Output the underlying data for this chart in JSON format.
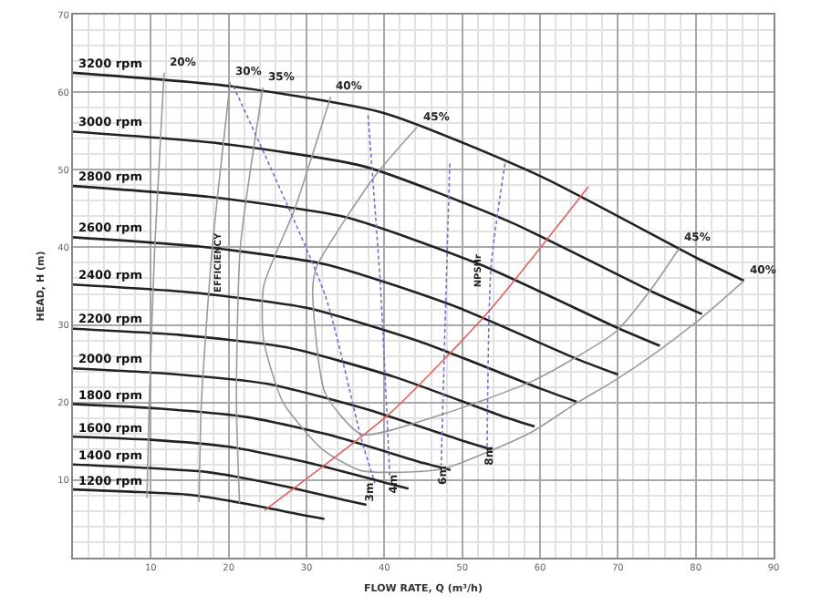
{
  "chart_data": {
    "type": "line",
    "xlabel": "FLOW RATE, Q (m³/h)",
    "ylabel": "HEAD, H (m)",
    "xlim": [
      0,
      90
    ],
    "ylim": [
      0,
      70
    ],
    "xticks": [
      10,
      20,
      30,
      40,
      50,
      60,
      70,
      80,
      90
    ],
    "yticks": [
      10,
      20,
      30,
      40,
      50,
      60,
      70
    ],
    "grid": true,
    "legend": false,
    "series": [
      {
        "name": "3200 rpm",
        "color": "#222222",
        "x": [
          0,
          20,
          40,
          60,
          80,
          86.2
        ],
        "values": [
          62.5,
          60.8,
          57.3,
          49.2,
          38.7,
          35.7
        ]
      },
      {
        "name": "3000 rpm",
        "color": "#222222",
        "x": [
          0,
          18.8,
          37.5,
          56.3,
          75,
          80.8
        ],
        "values": [
          54.9,
          53.4,
          50.4,
          43.2,
          34.0,
          31.4
        ]
      },
      {
        "name": "2800 rpm",
        "color": "#222222",
        "x": [
          0,
          17.5,
          35,
          52.5,
          70,
          75.4
        ],
        "values": [
          47.9,
          46.5,
          43.9,
          37.7,
          29.6,
          27.3
        ]
      },
      {
        "name": "2600 rpm",
        "color": "#222222",
        "x": [
          0,
          16.3,
          32.5,
          48.8,
          65,
          70
        ],
        "values": [
          41.3,
          40.1,
          37.8,
          32.5,
          25.5,
          23.6
        ]
      },
      {
        "name": "2400 rpm",
        "color": "#222222",
        "x": [
          0,
          15,
          30,
          45,
          60,
          64.7
        ],
        "values": [
          35.2,
          34.2,
          32.2,
          27.7,
          21.8,
          20.1
        ]
      },
      {
        "name": "2200 rpm",
        "color": "#222222",
        "x": [
          0,
          13.8,
          27.5,
          41.3,
          55,
          59.3
        ],
        "values": [
          29.5,
          28.7,
          27.1,
          23.3,
          18.3,
          16.9
        ]
      },
      {
        "name": "2000 rpm",
        "color": "#222222",
        "x": [
          0,
          12.5,
          25,
          37.5,
          50,
          53.9
        ],
        "values": [
          24.4,
          23.7,
          22.4,
          19.2,
          15.1,
          13.9
        ]
      },
      {
        "name": "1800 rpm",
        "color": "#222222",
        "x": [
          0,
          11.3,
          22.5,
          33.8,
          45,
          48.5
        ],
        "values": [
          19.8,
          19.2,
          18.1,
          15.6,
          12.2,
          11.3
        ]
      },
      {
        "name": "1600 rpm",
        "color": "#222222",
        "x": [
          0,
          10,
          20,
          30,
          40,
          43.1
        ],
        "values": [
          15.6,
          15.2,
          14.3,
          12.3,
          9.7,
          8.9
        ]
      },
      {
        "name": "1400 rpm",
        "color": "#222222",
        "x": [
          0,
          8.8,
          17.5,
          26.3,
          35,
          37.7
        ],
        "values": [
          12.0,
          11.6,
          11.0,
          9.4,
          7.4,
          6.8
        ]
      },
      {
        "name": "1200 rpm",
        "color": "#222222",
        "x": [
          0,
          7.5,
          15,
          22.5,
          30,
          32.3
        ],
        "values": [
          8.8,
          8.5,
          8.1,
          6.9,
          5.4,
          5.0
        ]
      },
      {
        "color": "#9a9a9a",
        "x": [
          11.7,
          10.5,
          9.8,
          9.5
        ],
        "values": [
          62.5,
          40,
          20,
          7.7
        ]
      },
      {
        "color": "#9a9a9a",
        "x": [
          20.2,
          17.9,
          16.5,
          16.2
        ],
        "values": [
          61.3,
          40,
          20,
          7.2
        ]
      },
      {
        "color": "#9a9a9a",
        "x": [
          24.4,
          21.5,
          21,
          21.4
        ],
        "values": [
          60.6,
          40,
          20,
          7
        ]
      },
      {
        "color": "#9a9a9a",
        "x": [
          33.1,
          28.5,
          24.5,
          24.5,
          27,
          32,
          37.1,
          47.3,
          53.7,
          59.1,
          64.5,
          70,
          75.4,
          80.6,
          86.2
        ],
        "values": [
          59.4,
          45,
          35,
          28,
          20,
          14,
          11.2,
          11.4,
          13.8,
          16.3,
          19.8,
          23.1,
          26.8,
          30.8,
          35.7
        ]
      },
      {
        "color": "#9a9a9a",
        "x": [
          44.2,
          38.8,
          31.3,
          30.8,
          32.4,
          37.1,
          46.6,
          59.1,
          69.7,
          74.2,
          77.9
        ],
        "values": [
          55.5,
          49.2,
          37.5,
          34.5,
          21.2,
          15.9,
          18.2,
          22.8,
          29.1,
          34.5,
          39.9
        ]
      },
      {
        "color": "#7070d0",
        "line_style": "dashed",
        "x": [
          20.6,
          32.4,
          37.1,
          38.8
        ],
        "values": [
          60.8,
          33.8,
          15.1,
          9.6
        ]
      },
      {
        "color": "#7070d0",
        "line_style": "dashed",
        "x": [
          37.9,
          39.5,
          40.7
        ],
        "values": [
          57,
          35,
          10.5
        ]
      },
      {
        "color": "#7070d0",
        "line_style": "dashed",
        "x": [
          48.4,
          47.8,
          47.3
        ],
        "values": [
          50.8,
          30,
          11.9
        ]
      },
      {
        "color": "#7070d0",
        "line_style": "dashed",
        "x": [
          55.5,
          53.7,
          53.2
        ],
        "values": [
          50.8,
          37.5,
          14.2
        ]
      },
      {
        "color": "#e06060",
        "x": [
          24.6,
          40.7,
          53.2,
          66.2
        ],
        "values": [
          6.1,
          18.6,
          31.5,
          47.8
        ]
      }
    ],
    "annotations": [
      {
        "text": "20%",
        "x": 11.7,
        "y": 62.5
      },
      {
        "text": "30%",
        "x": 20.2,
        "y": 61.3
      },
      {
        "text": "35%",
        "x": 24.4,
        "y": 60.6
      },
      {
        "text": "40%",
        "x": 33.1,
        "y": 59.4
      },
      {
        "text": "45%",
        "x": 44.2,
        "y": 55.5
      },
      {
        "text": "45%",
        "x": 77.9,
        "y": 39.9
      },
      {
        "text": "40%",
        "x": 86.2,
        "y": 35.7
      },
      {
        "text": "EFFICIENCY",
        "x": 18.8,
        "y": 38
      },
      {
        "text": "NPSHr",
        "x": 52.3,
        "y": 37
      },
      {
        "text": "3m",
        "x": 38.3,
        "y": 8.5
      },
      {
        "text": "4m",
        "x": 41.3,
        "y": 9.5
      },
      {
        "text": "6m",
        "x": 47.5,
        "y": 10.5
      },
      {
        "text": "8m",
        "x": 53.6,
        "y": 13
      }
    ]
  }
}
